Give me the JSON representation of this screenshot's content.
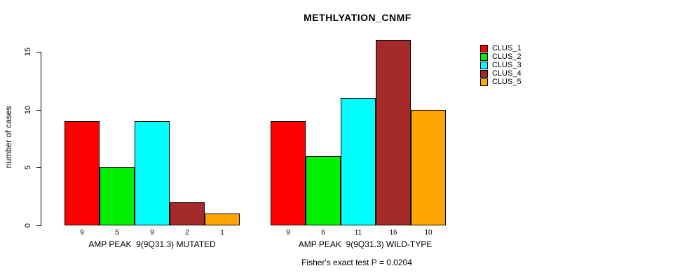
{
  "header": {
    "title": "METHLYATION_CNMF"
  },
  "footer": {
    "caption": "Fisher's exact test P = 0.0204"
  },
  "y_axis": {
    "label": "number of cases",
    "tick_labels": [
      "0",
      "5",
      "10",
      "15"
    ]
  },
  "chart_data": {
    "type": "bar",
    "title": "METHLYATION_CNMF",
    "xlabel": "",
    "ylabel": "number of cases",
    "ylim": [
      0,
      16
    ],
    "yticks": [
      0,
      5,
      10,
      15
    ],
    "grid": false,
    "legend_position": "right",
    "clusters": [
      {
        "name": "CLUS_1",
        "color": "#FF0000"
      },
      {
        "name": "CLUS_2",
        "color": "#00EE00"
      },
      {
        "name": "CLUS_3",
        "color": "#00FFFF"
      },
      {
        "name": "CLUS_4",
        "color": "#A52A2A"
      },
      {
        "name": "CLUS_5",
        "color": "#FFA500"
      }
    ],
    "groups": [
      {
        "label": "AMP PEAK  9(9Q31.3) MUTATED",
        "values": [
          9,
          5,
          9,
          2,
          1
        ]
      },
      {
        "label": "AMP PEAK  9(9Q31.3) WILD-TYPE",
        "values": [
          9,
          6,
          11,
          16,
          10
        ]
      }
    ],
    "annotation": "Fisher's exact test P = 0.0204"
  }
}
